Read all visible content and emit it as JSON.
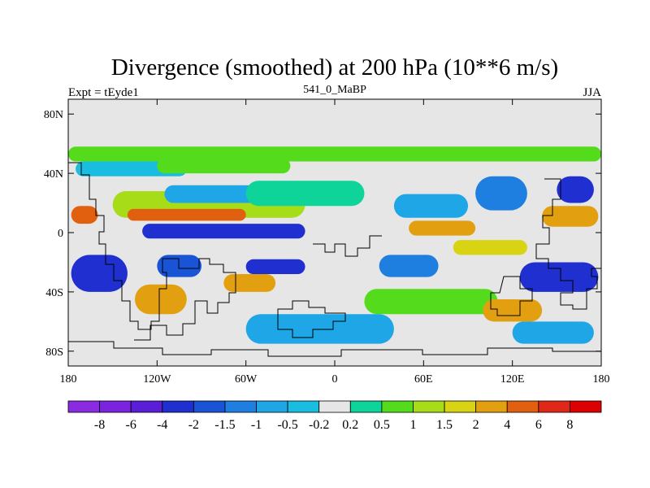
{
  "chart_data": {
    "type": "heatmap",
    "title": "Divergence (smoothed) at 200 hPa (10**6 m/s)",
    "subtitle": "541_0_MaBP",
    "left_label": "Expt = tEyde1",
    "right_label": "JJA",
    "x_range": [
      -180,
      180
    ],
    "y_range": [
      -90,
      90
    ],
    "x_ticks": [
      {
        "value": -180,
        "label": "180"
      },
      {
        "value": -120,
        "label": "120W"
      },
      {
        "value": -60,
        "label": "60W"
      },
      {
        "value": 0,
        "label": "0"
      },
      {
        "value": 60,
        "label": "60E"
      },
      {
        "value": 120,
        "label": "120E"
      },
      {
        "value": 180,
        "label": "180"
      }
    ],
    "y_ticks": [
      {
        "value": 80,
        "label": "80N"
      },
      {
        "value": 40,
        "label": "40N"
      },
      {
        "value": 0,
        "label": "0"
      },
      {
        "value": -40,
        "label": "40S"
      },
      {
        "value": -80,
        "label": "80S"
      }
    ],
    "colorbar": {
      "labels": [
        "-8",
        "-6",
        "-4",
        "-2",
        "-1.5",
        "-1",
        "-0.5",
        "-0.2",
        "0.2",
        "0.5",
        "1",
        "1.5",
        "2",
        "4",
        "6",
        "8"
      ],
      "colors": [
        "#8a2be2",
        "#7a24e0",
        "#5a1ed8",
        "#1f2fd0",
        "#1a54d6",
        "#1e7fe0",
        "#1fa6e6",
        "#18bde0",
        "#e6e6e6",
        "#0fd49a",
        "#54dc1c",
        "#a6dc18",
        "#d8d414",
        "#e2a010",
        "#e06010",
        "#e02818",
        "#dc0000"
      ]
    },
    "features": [
      {
        "lon_min": -180,
        "lon_max": 180,
        "lat_min": 48,
        "lat_max": 58,
        "value": 0.6
      },
      {
        "lon_min": -175,
        "lon_max": -100,
        "lat_min": 38,
        "lat_max": 48,
        "value": -0.4
      },
      {
        "lon_min": -120,
        "lon_max": -30,
        "lat_min": 40,
        "lat_max": 50,
        "value": 0.8
      },
      {
        "lon_min": -150,
        "lon_max": -20,
        "lat_min": 10,
        "lat_max": 28,
        "value": 1.2
      },
      {
        "lon_min": -140,
        "lon_max": -60,
        "lat_min": 8,
        "lat_max": 16,
        "value": 4.5
      },
      {
        "lon_min": -115,
        "lon_max": -40,
        "lat_min": 20,
        "lat_max": 32,
        "value": -0.7
      },
      {
        "lon_min": -60,
        "lon_max": 20,
        "lat_min": 18,
        "lat_max": 35,
        "value": 0.4
      },
      {
        "lon_min": 40,
        "lon_max": 90,
        "lat_min": 10,
        "lat_max": 26,
        "value": -0.6
      },
      {
        "lon_min": 95,
        "lon_max": 130,
        "lat_min": 15,
        "lat_max": 38,
        "value": -1.5
      },
      {
        "lon_min": 150,
        "lon_max": 175,
        "lat_min": 20,
        "lat_max": 38,
        "value": -2.5
      },
      {
        "lon_min": 140,
        "lon_max": 178,
        "lat_min": 4,
        "lat_max": 18,
        "value": 2.5
      },
      {
        "lon_min": -178,
        "lon_max": -160,
        "lat_min": 6,
        "lat_max": 18,
        "value": 4.0
      },
      {
        "lon_min": -130,
        "lon_max": -20,
        "lat_min": -4,
        "lat_max": 6,
        "value": -2.5
      },
      {
        "lon_min": 50,
        "lon_max": 95,
        "lat_min": -2,
        "lat_max": 8,
        "value": 2.0
      },
      {
        "lon_min": 80,
        "lon_max": 130,
        "lat_min": -15,
        "lat_max": -5,
        "value": 1.5
      },
      {
        "lon_min": -178,
        "lon_max": -140,
        "lat_min": -40,
        "lat_max": -15,
        "value": -3.0
      },
      {
        "lon_min": -120,
        "lon_max": -90,
        "lat_min": -30,
        "lat_max": -15,
        "value": -2.0
      },
      {
        "lon_min": -60,
        "lon_max": -20,
        "lat_min": -28,
        "lat_max": -18,
        "value": -3.0
      },
      {
        "lon_min": 30,
        "lon_max": 70,
        "lat_min": -30,
        "lat_max": -15,
        "value": -1.5
      },
      {
        "lon_min": 125,
        "lon_max": 178,
        "lat_min": -40,
        "lat_max": -20,
        "value": -2.5
      },
      {
        "lon_min": -75,
        "lon_max": -40,
        "lat_min": -40,
        "lat_max": -28,
        "value": 3.0
      },
      {
        "lon_min": -135,
        "lon_max": -100,
        "lat_min": -55,
        "lat_max": -35,
        "value": 2.0
      },
      {
        "lon_min": 20,
        "lon_max": 110,
        "lat_min": -55,
        "lat_max": -38,
        "value": 0.8
      },
      {
        "lon_min": 100,
        "lon_max": 140,
        "lat_min": -60,
        "lat_max": -45,
        "value": 3.0
      },
      {
        "lon_min": -60,
        "lon_max": 40,
        "lat_min": -75,
        "lat_max": -55,
        "value": -0.6
      },
      {
        "lon_min": 120,
        "lon_max": 175,
        "lat_min": -75,
        "lat_max": -60,
        "value": -0.8
      }
    ]
  }
}
